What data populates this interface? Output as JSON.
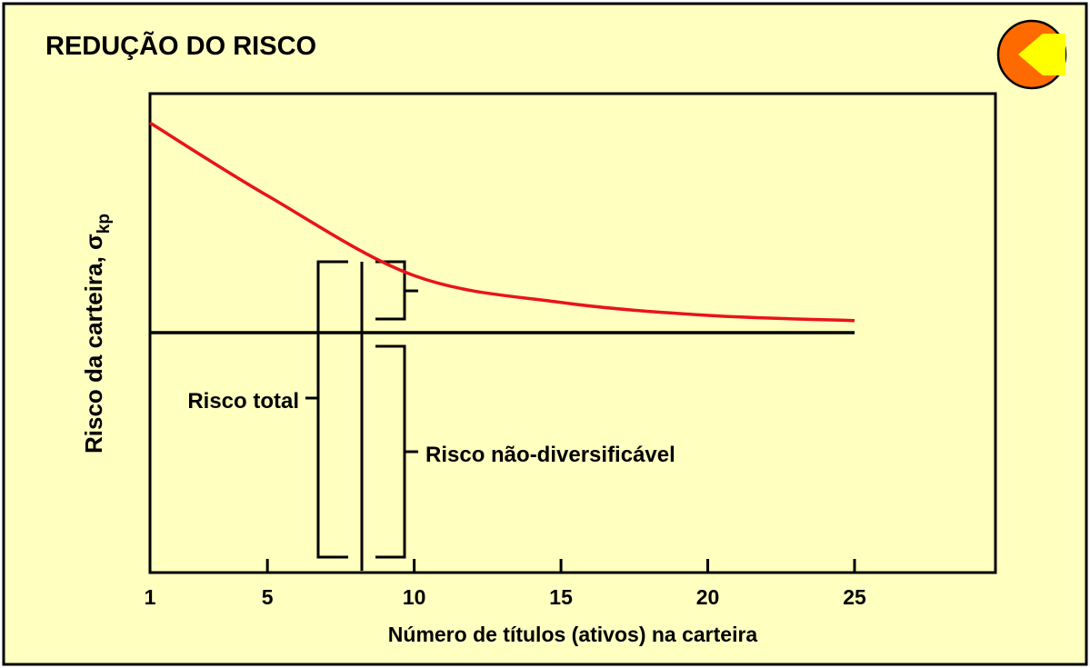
{
  "chart_data": {
    "type": "line",
    "title": "REDUÇÃO DO RISCO",
    "x_label": "Número de títulos (ativos) na carteira",
    "y_label": "Risco da carteira, σ",
    "y_label_subscript": "kp",
    "x": [
      1,
      5,
      10,
      15,
      20,
      25
    ],
    "series": [
      {
        "color": "#e8141b",
        "values": [
          93.9,
          78.7,
          62.0,
          56.4,
          53.7,
          52.6
        ]
      },
      {
        "color": "#000000",
        "values": [
          50.1,
          50.1,
          50.1,
          50.1,
          50.1,
          50.1
        ]
      }
    ],
    "xlim": [
      1,
      29.8
    ],
    "ylim": [
      0,
      100
    ],
    "xticks": [
      1,
      5,
      10,
      15,
      20,
      25
    ],
    "annotations": [
      "Risco total",
      "Risco não-diversificável"
    ]
  }
}
